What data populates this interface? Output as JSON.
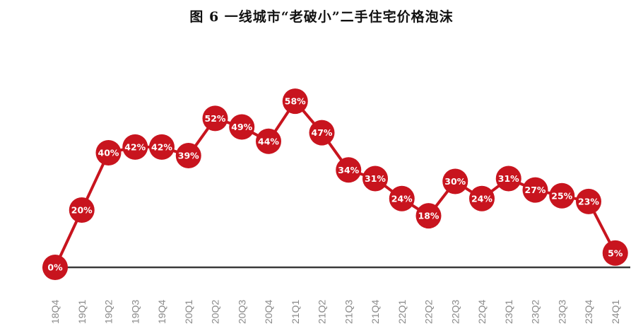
{
  "title": "图 6    一线城市“老破小”二手住宅价格泡沫",
  "colors": {
    "accent": "#c8141e",
    "axis": "#3a3a3a",
    "tick_text": "#8a8a8a",
    "label_text": "#ffffff"
  },
  "chart_data": {
    "type": "line",
    "title": "图 6    一线城市“老破小”二手住宅价格泡沫",
    "categories": [
      "18Q4",
      "19Q1",
      "19Q2",
      "19Q3",
      "19Q4",
      "20Q1",
      "20Q2",
      "20Q3",
      "20Q4",
      "21Q1",
      "21Q2",
      "21Q3",
      "21Q4",
      "22Q1",
      "22Q2",
      "22Q3",
      "22Q4",
      "23Q1",
      "23Q2",
      "23Q3",
      "23Q4",
      "24Q1"
    ],
    "values": [
      0,
      20,
      40,
      42,
      42,
      39,
      52,
      49,
      44,
      58,
      47,
      34,
      31,
      24,
      18,
      30,
      24,
      31,
      27,
      25,
      23,
      5
    ],
    "data_labels": [
      "0%",
      "20%",
      "40%",
      "42%",
      "42%",
      "39%",
      "52%",
      "49%",
      "44%",
      "58%",
      "47%",
      "34%",
      "31%",
      "24%",
      "18%",
      "30%",
      "24%",
      "31%",
      "27%",
      "25%",
      "23%",
      "5%"
    ],
    "ylim": [
      0,
      60
    ],
    "xlabel": "",
    "ylabel": "",
    "grid": false,
    "legend": "none"
  }
}
